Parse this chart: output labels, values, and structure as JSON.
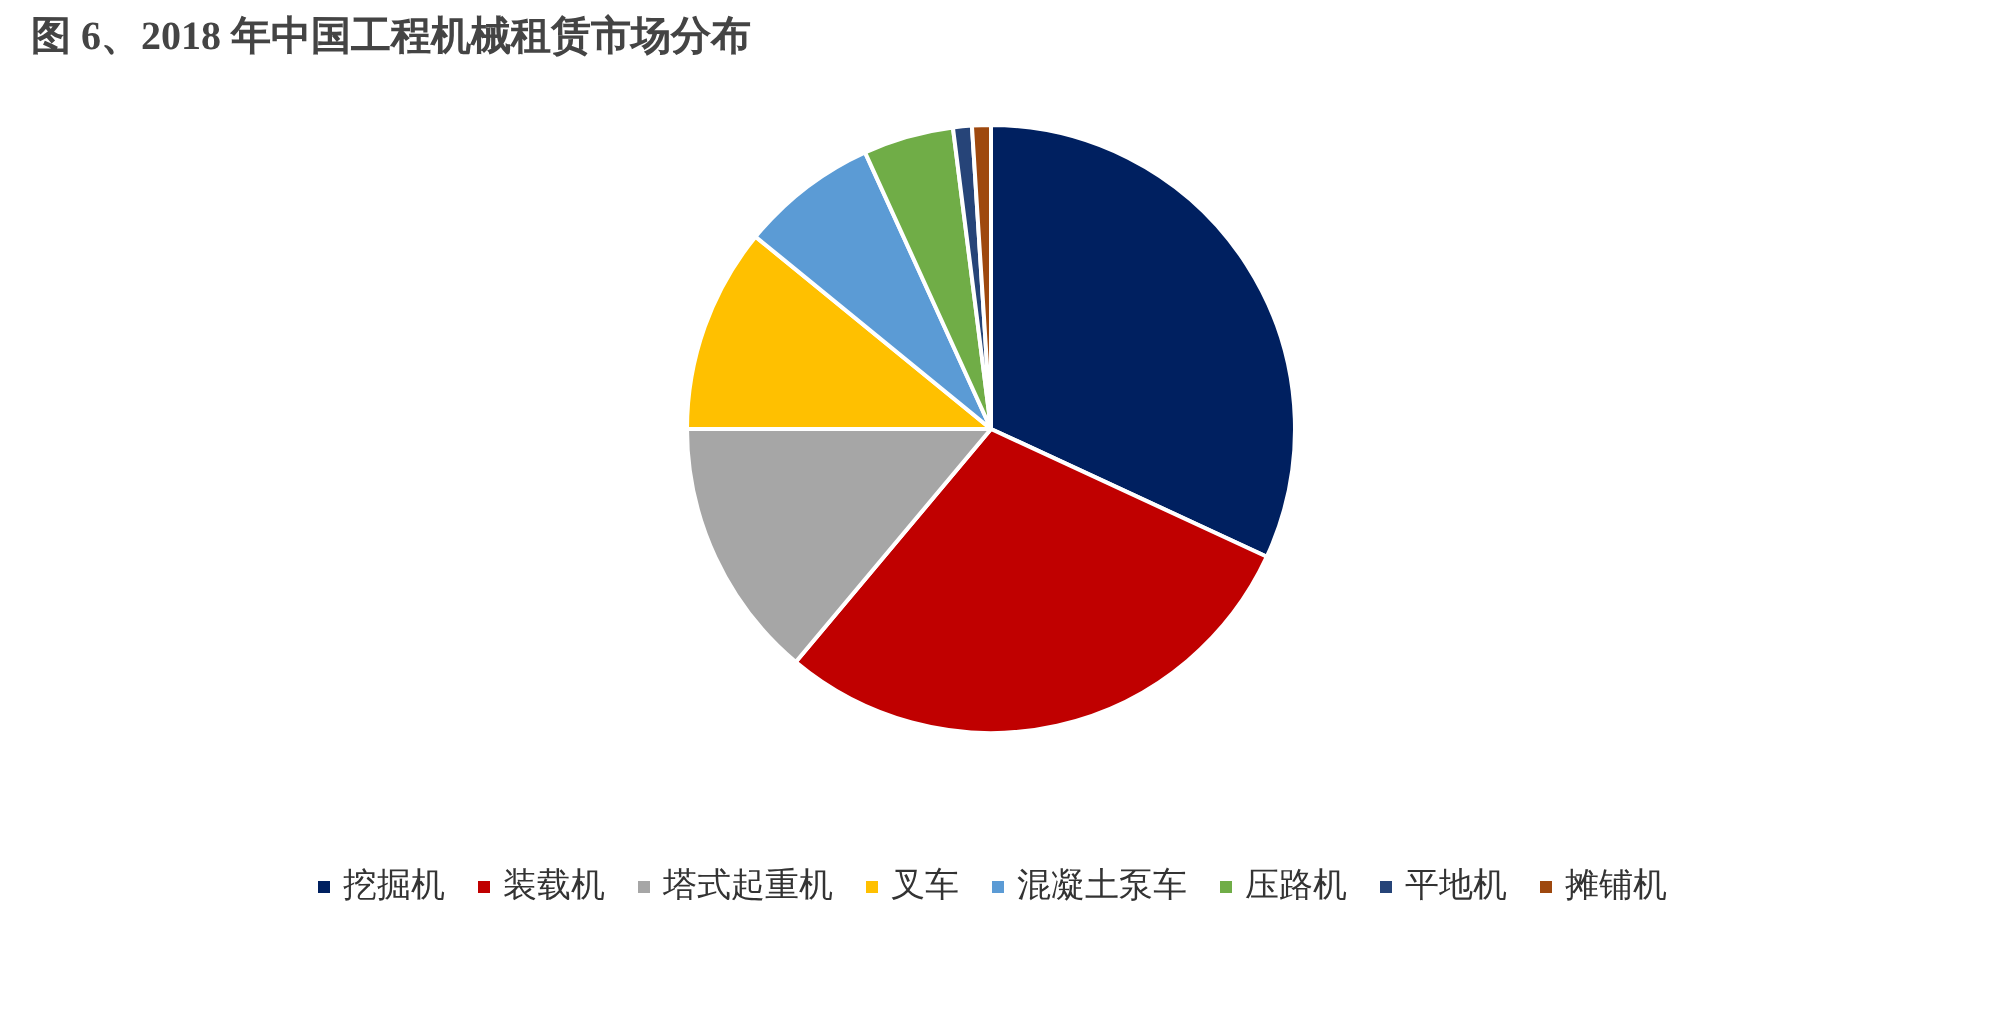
{
  "chart_data": {
    "type": "pie",
    "title": "图 6、2018 年中国工程机械租赁市场分布",
    "categories": [
      "挖掘机",
      "装载机",
      "塔式起重机",
      "叉车",
      "混凝土泵车",
      "压路机",
      "平地机",
      "摊铺机"
    ],
    "values": [
      31.9,
      29.2,
      13.9,
      10.9,
      7.3,
      4.8,
      1.0,
      1.0
    ],
    "colors": [
      "#002060",
      "#c00000",
      "#a6a6a6",
      "#ffc000",
      "#5b9bd5",
      "#70ad47",
      "#264478",
      "#9e480e"
    ],
    "legend": "bottom"
  }
}
